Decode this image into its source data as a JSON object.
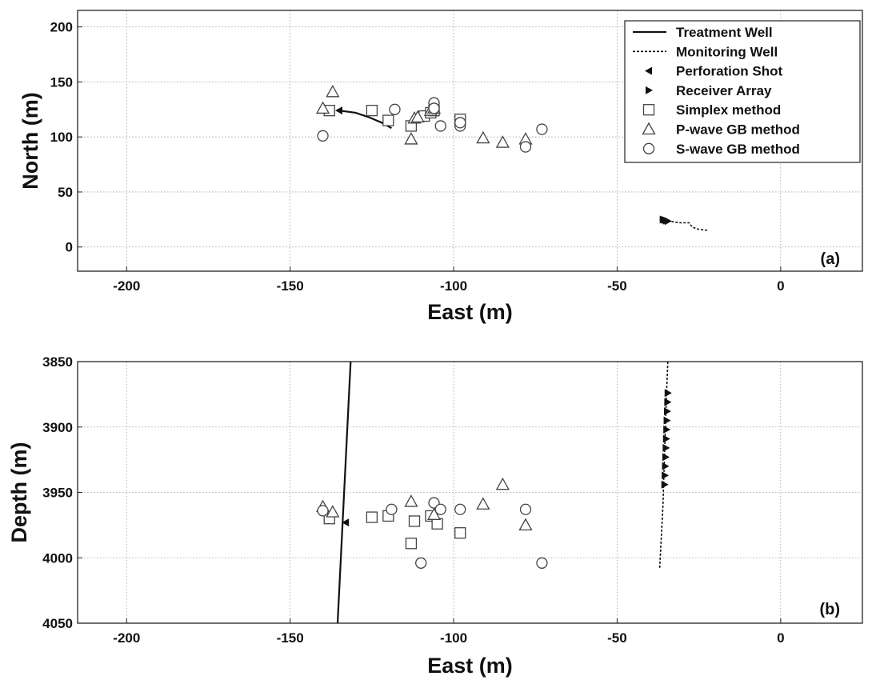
{
  "chart_data": [
    {
      "type": "scatter",
      "panel_tag": "(a)",
      "xlabel": "East (m)",
      "ylabel": "North (m)",
      "xlim": [
        -215,
        25
      ],
      "ylim": [
        -22,
        215
      ],
      "x_ticks": [
        -200,
        -150,
        -100,
        -50,
        0
      ],
      "y_ticks": [
        0,
        50,
        100,
        150,
        200
      ],
      "grid": true,
      "legend": {
        "placement": "top-right",
        "entries": [
          {
            "label": "Treatment Well",
            "style": "solid-line"
          },
          {
            "label": "Monitoring Well",
            "style": "dashed-line"
          },
          {
            "label": "Perforation Shot",
            "style": "left-triangle-filled"
          },
          {
            "label": "Receiver Array",
            "style": "right-triangle-filled"
          },
          {
            "label": "Simplex method",
            "style": "square-open"
          },
          {
            "label": "P-wave GB method",
            "style": "triangle-open"
          },
          {
            "label": "S-wave GB method",
            "style": "circle-open"
          }
        ]
      },
      "treatment_well": {
        "x": [
          -135,
          -130,
          -126,
          -122,
          -119
        ],
        "y": [
          124,
          122,
          118,
          113,
          108
        ]
      },
      "monitoring_well": {
        "x": [
          -37,
          -33,
          -31,
          -28,
          -27,
          -25,
          -22
        ],
        "y": [
          25,
          23,
          22,
          22,
          18,
          16,
          15
        ]
      },
      "perforation_shot": {
        "x": [
          -135
        ],
        "y": [
          124
        ]
      },
      "receiver_array": {
        "x": [
          -36,
          -35.5,
          -35,
          -34.5
        ],
        "y": [
          25,
          24.5,
          24,
          23.5
        ]
      },
      "series": [
        {
          "name": "Simplex method",
          "marker": "square",
          "x": [
            -138,
            -125,
            -120,
            -113,
            -109,
            -107,
            -106,
            -98
          ],
          "y": [
            124,
            124,
            115,
            110,
            119,
            122,
            124,
            116
          ]
        },
        {
          "name": "P-wave GB method",
          "marker": "triangle",
          "x": [
            -140,
            -137,
            -113,
            -112,
            -111,
            -107,
            -106,
            -91,
            -85,
            -78
          ],
          "y": [
            126,
            141,
            98,
            117,
            118,
            124,
            126,
            99,
            95,
            98
          ]
        },
        {
          "name": "S-wave GB method",
          "marker": "circle",
          "x": [
            -140,
            -118,
            -106,
            -106,
            -104,
            -98,
            -98,
            -78,
            -73
          ],
          "y": [
            101,
            125,
            131,
            126,
            110,
            110,
            113,
            91,
            107
          ]
        }
      ]
    },
    {
      "type": "scatter",
      "panel_tag": "(b)",
      "xlabel": "East (m)",
      "ylabel": "Depth (m)",
      "xlim": [
        -215,
        25
      ],
      "ylim": [
        3850,
        4050
      ],
      "y_inverted": true,
      "x_ticks": [
        -200,
        -150,
        -100,
        -50,
        0
      ],
      "y_ticks": [
        3850,
        3900,
        3950,
        4000,
        4050
      ],
      "grid": true,
      "treatment_well": {
        "x": [
          -131.5,
          -135.5
        ],
        "y": [
          3850,
          4050
        ]
      },
      "monitoring_well": {
        "x": [
          -34.5,
          -35,
          -35.5,
          -36,
          -37
        ],
        "y": [
          3850,
          3880,
          3920,
          3960,
          4008
        ]
      },
      "perforation_shot": {
        "x": [
          -133
        ],
        "y": [
          3973
        ]
      },
      "receiver_array": {
        "x": [
          -34.5,
          -34.6,
          -34.7,
          -34.8,
          -34.9,
          -35.0,
          -35.1,
          -35.2,
          -35.3,
          -35.4,
          -35.5
        ],
        "y": [
          3874,
          3881,
          3888,
          3895,
          3902,
          3909,
          3916,
          3923,
          3930,
          3937,
          3944
        ]
      },
      "series": [
        {
          "name": "Simplex method",
          "marker": "square",
          "x": [
            -138,
            -125,
            -120,
            -113,
            -112,
            -107,
            -105,
            -98
          ],
          "y": [
            3970,
            3969,
            3968,
            3989,
            3972,
            3968,
            3974,
            3981
          ]
        },
        {
          "name": "P-wave GB method",
          "marker": "triangle",
          "x": [
            -140,
            -137,
            -113,
            -106,
            -91,
            -85,
            -78
          ],
          "y": [
            3961,
            3965,
            3957,
            3967,
            3959,
            3944,
            3975
          ]
        },
        {
          "name": "S-wave GB method",
          "marker": "circle",
          "x": [
            -140,
            -119,
            -110,
            -106,
            -104,
            -98,
            -78,
            -73
          ],
          "y": [
            3964,
            3963,
            4004,
            3958,
            3963,
            3963,
            3963,
            4004
          ]
        }
      ]
    }
  ]
}
